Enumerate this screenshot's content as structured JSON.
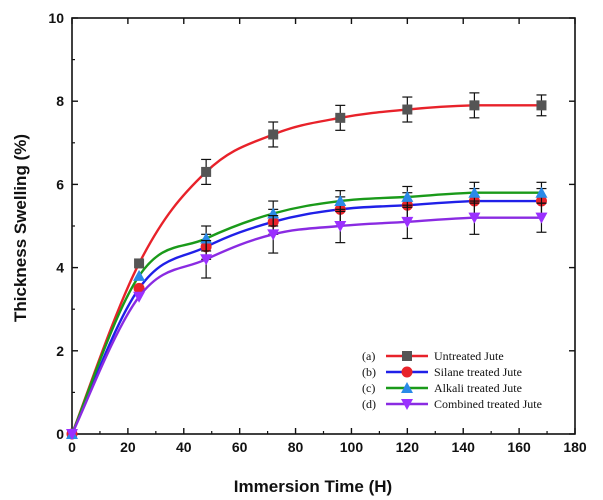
{
  "chart_data": {
    "type": "line",
    "xlabel": "Immersion Time (H)",
    "ylabel": "Thickness Swelling (%)",
    "xlim": [
      0,
      180
    ],
    "ylim": [
      0,
      10
    ],
    "xticks": [
      0,
      20,
      40,
      60,
      80,
      100,
      120,
      140,
      160,
      180
    ],
    "yticks": [
      0,
      2,
      4,
      6,
      8,
      10
    ],
    "x": [
      0,
      24,
      48,
      72,
      96,
      120,
      144,
      168
    ],
    "grid": false,
    "legend_position": "bottom-right",
    "series": [
      {
        "name": "Untreated Jute",
        "prefix": "(a)",
        "marker": "square",
        "color": "#e8222a",
        "marker_color": "#555555",
        "values": [
          0,
          4.1,
          6.3,
          7.2,
          7.6,
          7.8,
          7.9,
          7.9
        ],
        "errors": [
          0,
          0,
          0.3,
          0.3,
          0.3,
          0.3,
          0.3,
          0.25
        ]
      },
      {
        "name": "Silane treated Jute",
        "prefix": "(b)",
        "marker": "circle",
        "color": "#2020e8",
        "marker_color": "#e8222a",
        "values": [
          0,
          3.5,
          4.5,
          5.1,
          5.4,
          5.5,
          5.6,
          5.6
        ],
        "errors": [
          0,
          0,
          0.3,
          0.3,
          0.3,
          0.3,
          0.3,
          0.3
        ]
      },
      {
        "name": "Alkali treated Jute",
        "prefix": "(c)",
        "marker": "triangle-up",
        "color": "#1a9a1a",
        "marker_color": "#2a8ae8",
        "values": [
          0,
          3.8,
          4.7,
          5.3,
          5.6,
          5.7,
          5.8,
          5.8
        ],
        "errors": [
          0,
          0,
          0.3,
          0.3,
          0.25,
          0.25,
          0.25,
          0.25
        ]
      },
      {
        "name": "Combined treated Jute",
        "prefix": "(d)",
        "marker": "triangle-down",
        "color": "#8a2be2",
        "marker_color": "#9b30ff",
        "values": [
          0,
          3.3,
          4.2,
          4.8,
          5.0,
          5.1,
          5.2,
          5.2
        ],
        "errors": [
          0,
          0,
          0.45,
          0.45,
          0.4,
          0.4,
          0.4,
          0.35
        ]
      }
    ]
  }
}
